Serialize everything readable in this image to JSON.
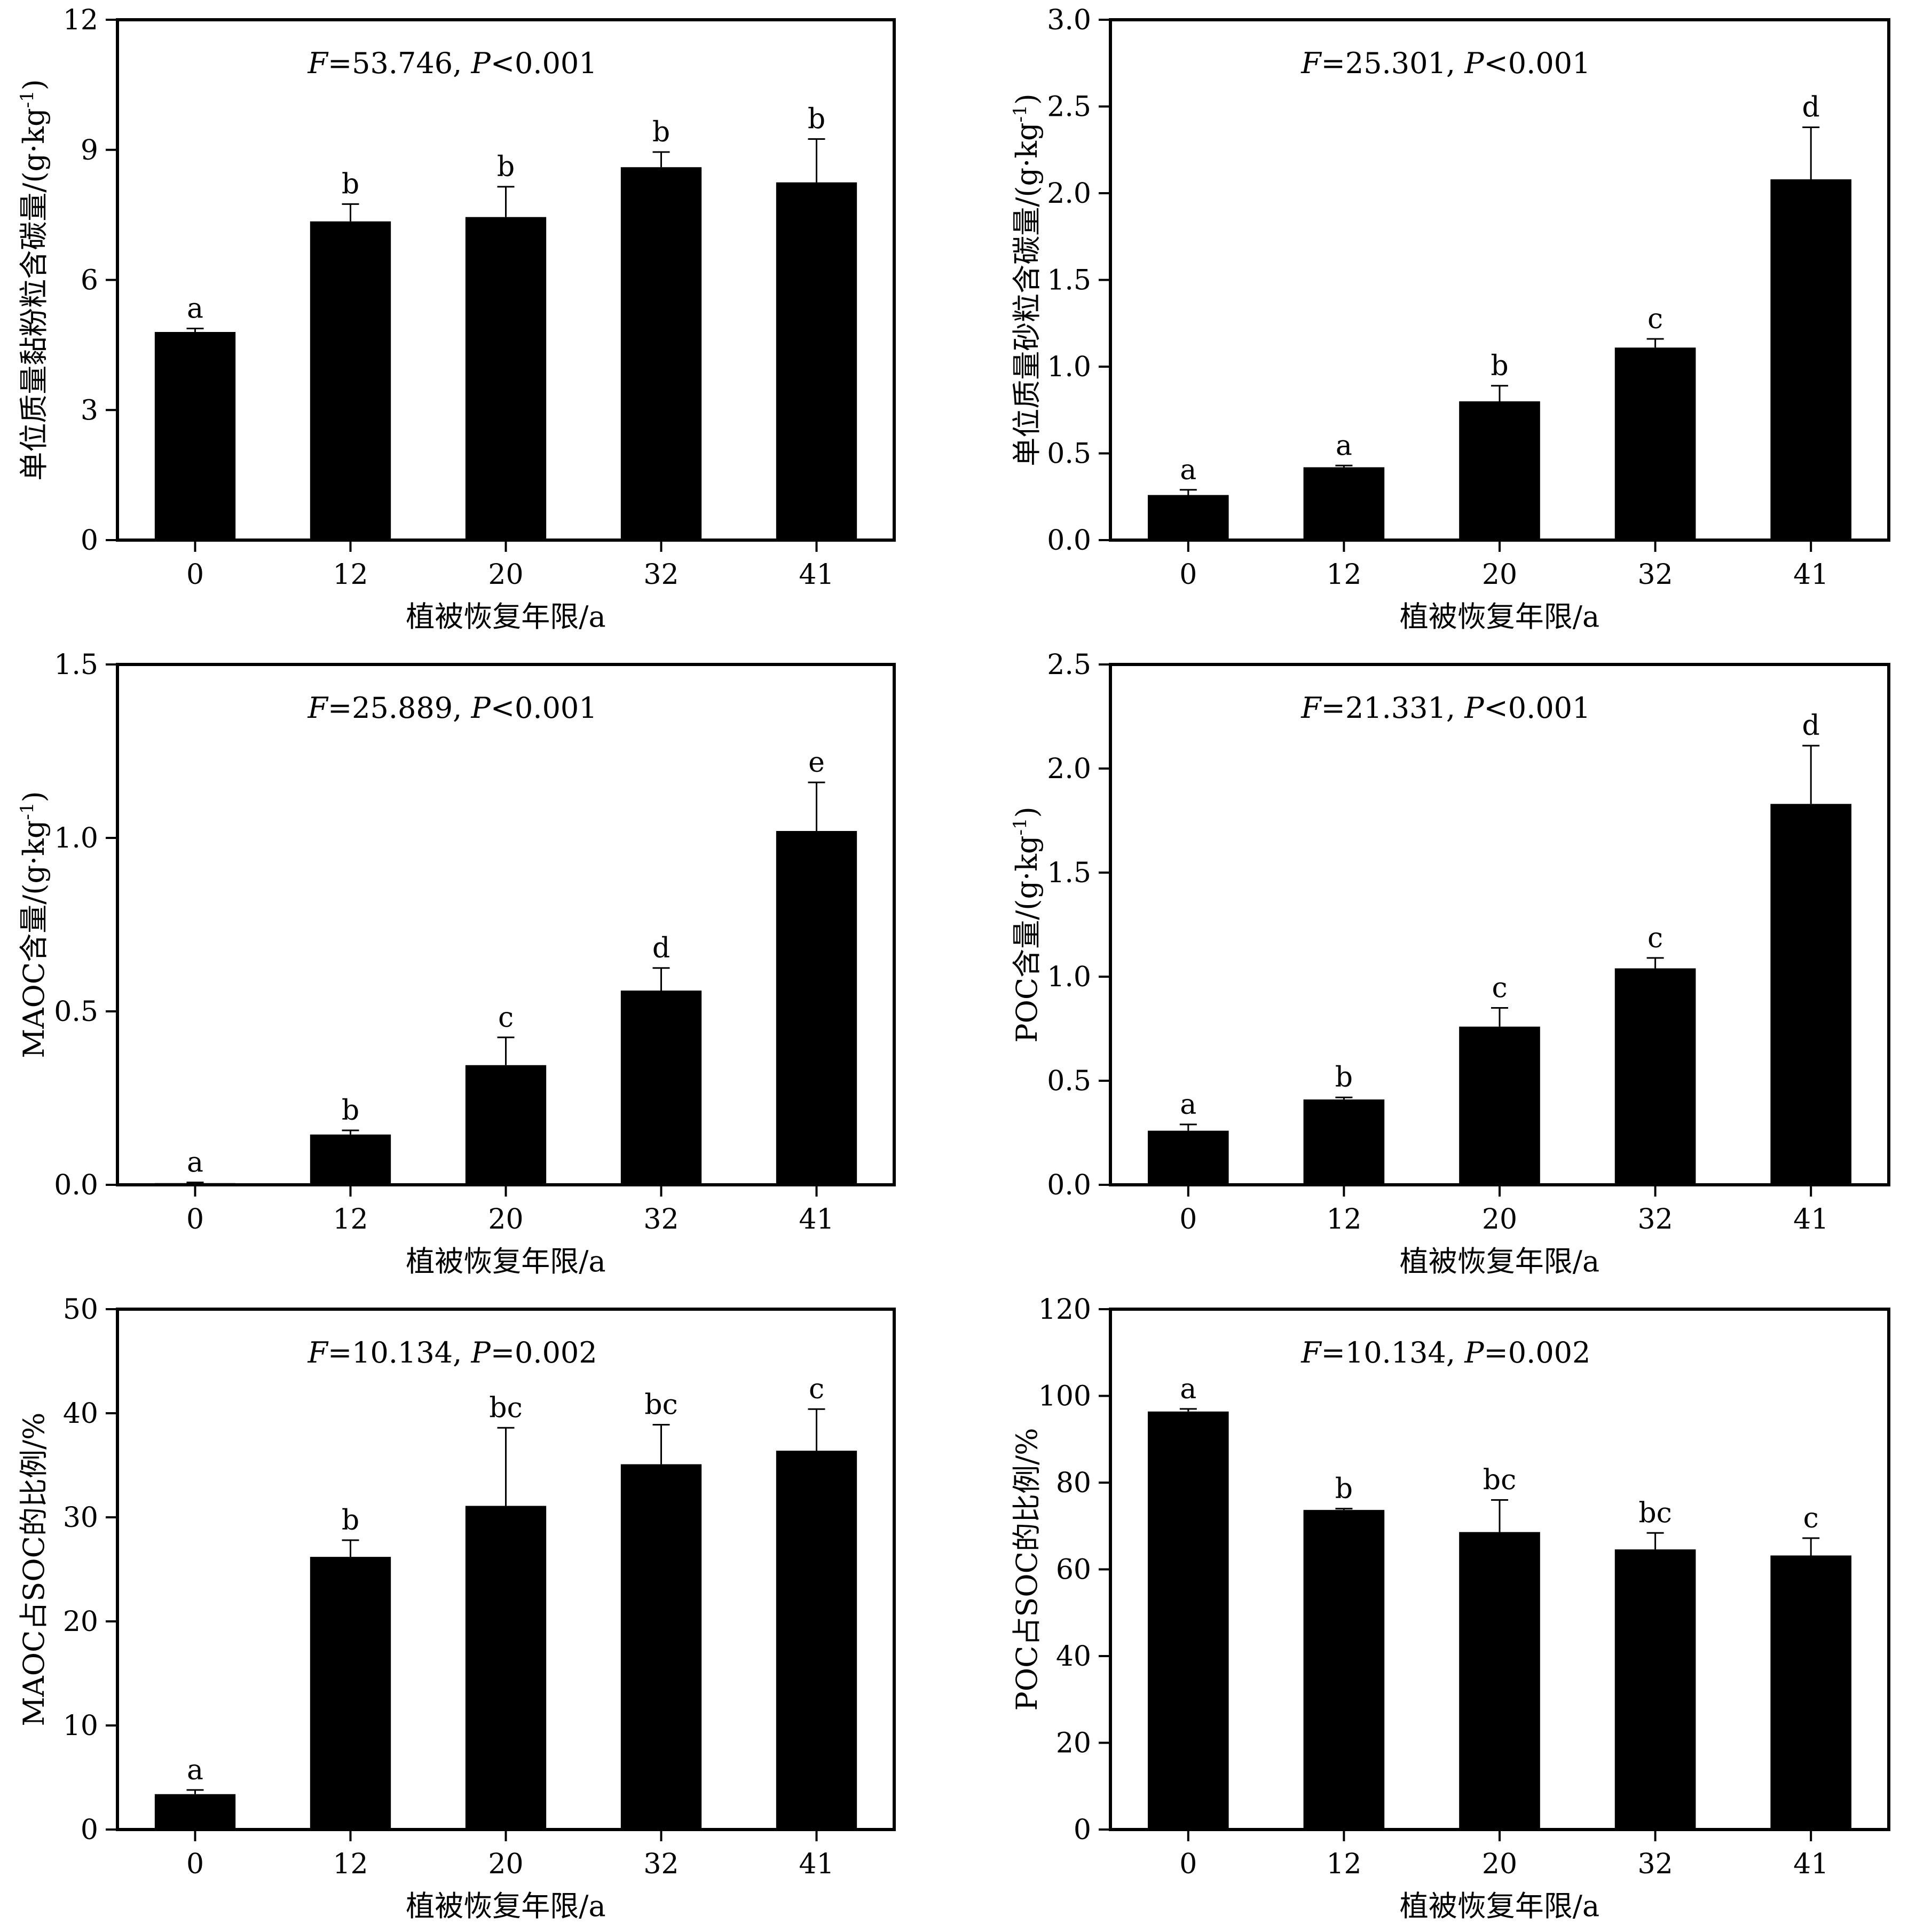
{
  "figure": {
    "panels": 6,
    "bar_color": "#000000",
    "background": "#ffffff"
  },
  "chart_data": [
    {
      "type": "bar",
      "categories": [
        "0",
        "12",
        "20",
        "32",
        "41"
      ],
      "values": [
        4.8,
        7.35,
        7.45,
        8.6,
        8.25
      ],
      "errors": [
        0.08,
        0.4,
        0.7,
        0.35,
        1.0
      ],
      "letters": [
        "a",
        "b",
        "b",
        "b",
        "b"
      ],
      "stat_F": "53.746",
      "stat_P_op": "<",
      "stat_P": "0.001",
      "xlabel": "植被恢复年限/a",
      "ylabel": "单位质量黏粉粒含碳量/(g·kg-1)",
      "ylabel_main": "单位质量黏粉粒含碳量/(g·kg",
      "ylabel_sup": "-1",
      "ylabel_tail": ")",
      "ylim": [
        0,
        12
      ],
      "yticks": [
        "0",
        "3",
        "6",
        "9",
        "12"
      ],
      "grid": false,
      "legend": "none"
    },
    {
      "type": "bar",
      "categories": [
        "0",
        "12",
        "20",
        "32",
        "41"
      ],
      "values": [
        0.26,
        0.42,
        0.8,
        1.11,
        2.08
      ],
      "errors": [
        0.03,
        0.01,
        0.09,
        0.05,
        0.3
      ],
      "letters": [
        "a",
        "a",
        "b",
        "c",
        "d"
      ],
      "stat_F": "25.301",
      "stat_P_op": "<",
      "stat_P": "0.001",
      "xlabel": "植被恢复年限/a",
      "ylabel": "单位质量砂粒含碳量/(g·kg-1)",
      "ylabel_main": "单位质量砂粒含碳量/(g·kg",
      "ylabel_sup": "-1",
      "ylabel_tail": ")",
      "ylim": [
        0,
        3.0
      ],
      "yticks": [
        "0.0",
        "0.5",
        "1.0",
        "1.5",
        "2.0",
        "2.5",
        "3.0"
      ],
      "grid": false,
      "legend": "none"
    },
    {
      "type": "bar",
      "categories": [
        "0",
        "12",
        "20",
        "32",
        "41"
      ],
      "values": [
        0.005,
        0.145,
        0.345,
        0.56,
        1.02
      ],
      "errors": [
        0.002,
        0.012,
        0.08,
        0.065,
        0.14
      ],
      "letters": [
        "a",
        "b",
        "c",
        "d",
        "e"
      ],
      "stat_F": "25.889",
      "stat_P_op": "<",
      "stat_P": "0.001",
      "xlabel": "植被恢复年限/a",
      "ylabel": "MAOC含量/(g·kg-1)",
      "ylabel_main": "MAOC含量/(g·kg",
      "ylabel_sup": "-1",
      "ylabel_tail": ")",
      "ylim": [
        0,
        1.5
      ],
      "yticks": [
        "0.0",
        "0.5",
        "1.0",
        "1.5"
      ],
      "grid": false,
      "legend": "none"
    },
    {
      "type": "bar",
      "categories": [
        "0",
        "12",
        "20",
        "32",
        "41"
      ],
      "values": [
        0.26,
        0.41,
        0.76,
        1.04,
        1.83
      ],
      "errors": [
        0.03,
        0.01,
        0.09,
        0.05,
        0.28
      ],
      "letters": [
        "a",
        "b",
        "c",
        "c",
        "d"
      ],
      "stat_F": "21.331",
      "stat_P_op": "<",
      "stat_P": "0.001",
      "xlabel": "植被恢复年限/a",
      "ylabel": "POC含量/(g·kg-1)",
      "ylabel_main": "POC含量/(g·kg",
      "ylabel_sup": "-1",
      "ylabel_tail": ")",
      "ylim": [
        0,
        2.5
      ],
      "yticks": [
        "0.0",
        "0.5",
        "1.0",
        "1.5",
        "2.0",
        "2.5"
      ],
      "grid": false,
      "legend": "none"
    },
    {
      "type": "bar",
      "categories": [
        "0",
        "12",
        "20",
        "32",
        "41"
      ],
      "values": [
        3.4,
        26.2,
        31.1,
        35.1,
        36.4
      ],
      "errors": [
        0.4,
        1.6,
        7.5,
        3.8,
        4.0
      ],
      "letters": [
        "a",
        "b",
        "bc",
        "bc",
        "c"
      ],
      "stat_F": "10.134",
      "stat_P_op": "=",
      "stat_P": "0.002",
      "xlabel": "植被恢复年限/a",
      "ylabel": "MAOC占SOC的比例/%",
      "ylabel_main": "MAOC占SOC的比例/%",
      "ylabel_sup": "",
      "ylabel_tail": "",
      "ylim": [
        0,
        50
      ],
      "yticks": [
        "0",
        "10",
        "20",
        "30",
        "40",
        "50"
      ],
      "grid": false,
      "legend": "none"
    },
    {
      "type": "bar",
      "categories": [
        "0",
        "12",
        "20",
        "32",
        "41"
      ],
      "values": [
        96.4,
        73.7,
        68.6,
        64.6,
        63.2
      ],
      "errors": [
        0.6,
        0.3,
        7.4,
        3.8,
        4.0
      ],
      "letters": [
        "a",
        "b",
        "bc",
        "bc",
        "c"
      ],
      "stat_F": "10.134",
      "stat_P_op": "=",
      "stat_P": "0.002",
      "xlabel": "植被恢复年限/a",
      "ylabel": "POC占SOC的比例/%",
      "ylabel_main": "POC占SOC的比例/%",
      "ylabel_sup": "",
      "ylabel_tail": "",
      "ylim": [
        0,
        120
      ],
      "yticks": [
        "0",
        "20",
        "40",
        "60",
        "80",
        "100",
        "120"
      ],
      "grid": false,
      "legend": "none"
    }
  ]
}
